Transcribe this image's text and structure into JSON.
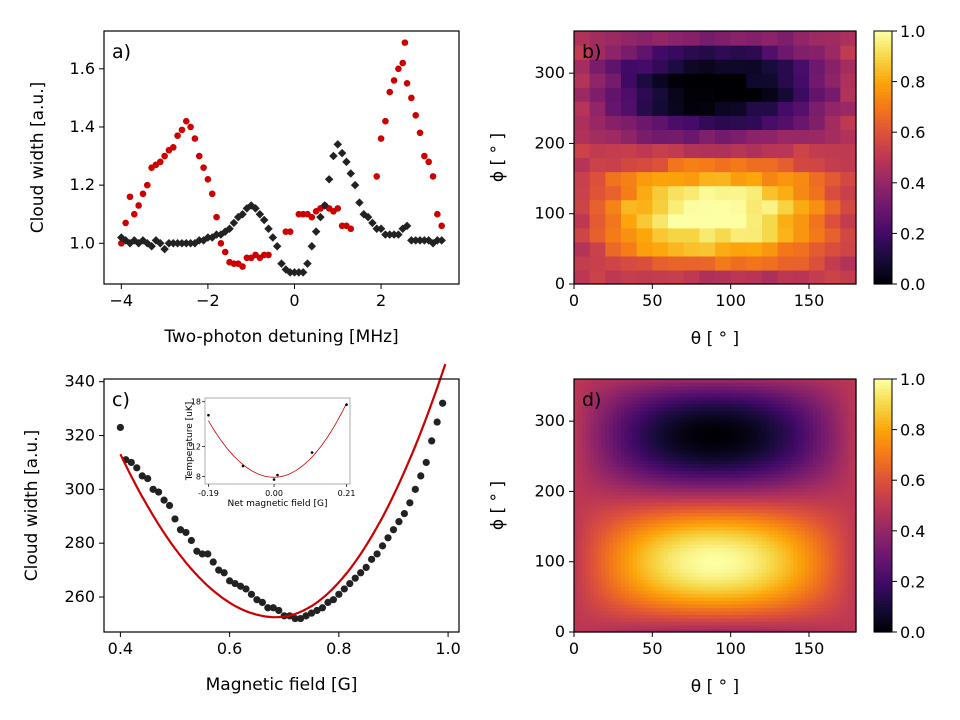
{
  "chart_data": [
    {
      "id": "a",
      "type": "scatter",
      "panel_label": "a)",
      "xlabel": "Two-photon detuning [MHz]",
      "ylabel": "Cloud width [a.u.]",
      "xlim": [
        -4.4,
        3.8
      ],
      "ylim": [
        0.86,
        1.73
      ],
      "xticks": [
        -4,
        -2,
        0,
        2
      ],
      "xtick_labels": [
        "−4",
        "−2",
        "0",
        "2"
      ],
      "yticks": [
        1.0,
        1.2,
        1.4,
        1.6
      ],
      "ytick_labels": [
        "1.0",
        "1.2",
        "1.4",
        "1.6"
      ],
      "series": [
        {
          "name": "red",
          "color": "#cc0000",
          "marker": "circle",
          "points": [
            [
              -4.0,
              1.0
            ],
            [
              -3.9,
              1.07
            ],
            [
              -3.8,
              1.16
            ],
            [
              -3.7,
              1.1
            ],
            [
              -3.6,
              1.13
            ],
            [
              -3.5,
              1.17
            ],
            [
              -3.4,
              1.2
            ],
            [
              -3.3,
              1.26
            ],
            [
              -3.2,
              1.27
            ],
            [
              -3.1,
              1.28
            ],
            [
              -3.0,
              1.3
            ],
            [
              -2.9,
              1.32
            ],
            [
              -2.8,
              1.33
            ],
            [
              -2.7,
              1.37
            ],
            [
              -2.6,
              1.39
            ],
            [
              -2.5,
              1.42
            ],
            [
              -2.4,
              1.4
            ],
            [
              -2.3,
              1.36
            ],
            [
              -2.2,
              1.3
            ],
            [
              -2.1,
              1.26
            ],
            [
              -2.0,
              1.22
            ],
            [
              -1.9,
              1.17
            ],
            [
              -1.8,
              1.09
            ],
            [
              -1.7,
              1.0
            ],
            [
              -1.6,
              0.97
            ],
            [
              -1.5,
              0.935
            ],
            [
              -1.4,
              0.93
            ],
            [
              -1.3,
              0.93
            ],
            [
              -1.2,
              0.92
            ],
            [
              -1.1,
              0.95
            ],
            [
              -1.0,
              0.95
            ],
            [
              -0.9,
              0.96
            ],
            [
              -0.8,
              0.95
            ],
            [
              -0.7,
              0.96
            ],
            [
              -0.6,
              0.96
            ],
            [
              -0.2,
              1.04
            ],
            [
              -0.1,
              1.04
            ],
            [
              0.1,
              1.1
            ],
            [
              0.2,
              1.1
            ],
            [
              0.3,
              1.1
            ],
            [
              0.4,
              1.09
            ],
            [
              0.5,
              1.11
            ],
            [
              0.6,
              1.12
            ],
            [
              0.7,
              1.13
            ],
            [
              0.8,
              1.12
            ],
            [
              0.9,
              1.11
            ],
            [
              1.0,
              1.12
            ],
            [
              1.1,
              1.06
            ],
            [
              1.2,
              1.06
            ],
            [
              1.3,
              1.05
            ],
            [
              1.9,
              1.23
            ],
            [
              2.0,
              1.36
            ],
            [
              2.1,
              1.42
            ],
            [
              2.2,
              1.52
            ],
            [
              2.3,
              1.56
            ],
            [
              2.4,
              1.6
            ],
            [
              2.5,
              1.62
            ],
            [
              2.55,
              1.69
            ],
            [
              2.6,
              1.55
            ],
            [
              2.7,
              1.5
            ],
            [
              2.8,
              1.44
            ],
            [
              2.9,
              1.38
            ],
            [
              3.0,
              1.3
            ],
            [
              3.1,
              1.28
            ],
            [
              3.2,
              1.23
            ],
            [
              3.3,
              1.1
            ],
            [
              3.4,
              1.06
            ]
          ]
        },
        {
          "name": "black",
          "color": "#222222",
          "marker": "diamond",
          "points": [
            [
              -4.0,
              1.02
            ],
            [
              -3.9,
              1.01
            ],
            [
              -3.8,
              1.0
            ],
            [
              -3.7,
              1.01
            ],
            [
              -3.6,
              1.0
            ],
            [
              -3.5,
              1.01
            ],
            [
              -3.4,
              1.0
            ],
            [
              -3.3,
              0.99
            ],
            [
              -3.2,
              1.01
            ],
            [
              -3.1,
              1.0
            ],
            [
              -3.0,
              0.98
            ],
            [
              -2.9,
              1.0
            ],
            [
              -2.8,
              1.0
            ],
            [
              -2.7,
              1.0
            ],
            [
              -2.6,
              1.0
            ],
            [
              -2.5,
              1.0
            ],
            [
              -2.4,
              1.0
            ],
            [
              -2.3,
              1.0
            ],
            [
              -2.2,
              1.01
            ],
            [
              -2.1,
              1.01
            ],
            [
              -2.0,
              1.02
            ],
            [
              -1.9,
              1.02
            ],
            [
              -1.8,
              1.03
            ],
            [
              -1.7,
              1.03
            ],
            [
              -1.6,
              1.04
            ],
            [
              -1.5,
              1.05
            ],
            [
              -1.4,
              1.07
            ],
            [
              -1.3,
              1.09
            ],
            [
              -1.2,
              1.1
            ],
            [
              -1.1,
              1.12
            ],
            [
              -1.0,
              1.13
            ],
            [
              -0.9,
              1.12
            ],
            [
              -0.8,
              1.1
            ],
            [
              -0.7,
              1.08
            ],
            [
              -0.6,
              1.05
            ],
            [
              -0.5,
              1.02
            ],
            [
              -0.4,
              0.99
            ],
            [
              -0.3,
              0.93
            ],
            [
              -0.2,
              0.91
            ],
            [
              -0.1,
              0.9
            ],
            [
              0.0,
              0.9
            ],
            [
              0.1,
              0.9
            ],
            [
              0.2,
              0.9
            ],
            [
              0.3,
              0.93
            ],
            [
              0.4,
              0.99
            ],
            [
              0.5,
              1.04
            ],
            [
              0.6,
              1.09
            ],
            [
              0.7,
              1.13
            ],
            [
              0.8,
              1.22
            ],
            [
              0.9,
              1.3
            ],
            [
              1.0,
              1.34
            ],
            [
              1.1,
              1.31
            ],
            [
              1.2,
              1.28
            ],
            [
              1.3,
              1.24
            ],
            [
              1.4,
              1.2
            ],
            [
              1.5,
              1.14
            ],
            [
              1.6,
              1.1
            ],
            [
              1.7,
              1.09
            ],
            [
              1.8,
              1.07
            ],
            [
              1.9,
              1.05
            ],
            [
              2.0,
              1.05
            ],
            [
              2.1,
              1.03
            ],
            [
              2.2,
              1.03
            ],
            [
              2.3,
              1.03
            ],
            [
              2.4,
              1.03
            ],
            [
              2.5,
              1.05
            ],
            [
              2.6,
              1.06
            ],
            [
              2.7,
              1.01
            ],
            [
              2.8,
              1.01
            ],
            [
              2.9,
              1.01
            ],
            [
              3.0,
              1.01
            ],
            [
              3.1,
              1.01
            ],
            [
              3.2,
              1.0
            ],
            [
              3.3,
              1.01
            ],
            [
              3.4,
              1.01
            ]
          ]
        }
      ]
    },
    {
      "id": "b",
      "type": "heatmap",
      "panel_label": "b)",
      "xlabel": "θ [ ° ]",
      "ylabel": "ϕ [ ° ]",
      "xlim": [
        0,
        180
      ],
      "ylim": [
        0,
        360
      ],
      "xticks": [
        0,
        50,
        100,
        150
      ],
      "yticks": [
        0,
        100,
        200,
        300
      ],
      "colormap": "inferno",
      "clim": [
        0.0,
        1.0
      ],
      "grid_size": [
        18,
        18
      ],
      "model": "0.5 + 0.5*sin(theta)*sin(phi)^? (measured, pixelated; bright band near phi≈100, dark band near phi≈280)",
      "colorbar_ticks": [
        0.0,
        0.2,
        0.4,
        0.6,
        0.8,
        1.0
      ],
      "colorbar_tick_labels": [
        "0.0",
        "0.2",
        "0.4",
        "0.6",
        "0.8",
        "1.0"
      ]
    },
    {
      "id": "c",
      "type": "scatter",
      "panel_label": "c)",
      "xlabel": "Magnetic field [G]",
      "ylabel": "Cloud width [a.u.]",
      "xlim": [
        0.37,
        1.02
      ],
      "ylim": [
        247,
        341
      ],
      "xticks": [
        0.4,
        0.6,
        0.8,
        1.0
      ],
      "xtick_labels": [
        "0.4",
        "0.6",
        "0.8",
        "1.0"
      ],
      "yticks": [
        260,
        280,
        300,
        320,
        340
      ],
      "ytick_labels": [
        "260",
        "280",
        "300",
        "320",
        "340"
      ],
      "fit": {
        "color": "#cc0000",
        "vertex_x": 0.685,
        "vertex_y": 252.5,
        "a": 932
      },
      "points": [
        [
          0.4,
          323
        ],
        [
          0.41,
          311
        ],
        [
          0.42,
          310
        ],
        [
          0.43,
          308
        ],
        [
          0.44,
          305
        ],
        [
          0.45,
          304
        ],
        [
          0.46,
          300
        ],
        [
          0.47,
          299
        ],
        [
          0.48,
          296
        ],
        [
          0.49,
          294
        ],
        [
          0.5,
          289
        ],
        [
          0.51,
          285
        ],
        [
          0.52,
          284
        ],
        [
          0.53,
          281
        ],
        [
          0.54,
          277
        ],
        [
          0.55,
          276
        ],
        [
          0.56,
          276
        ],
        [
          0.57,
          273
        ],
        [
          0.58,
          270
        ],
        [
          0.59,
          269
        ],
        [
          0.6,
          266
        ],
        [
          0.61,
          265
        ],
        [
          0.62,
          264
        ],
        [
          0.63,
          263
        ],
        [
          0.64,
          261
        ],
        [
          0.65,
          259
        ],
        [
          0.66,
          258
        ],
        [
          0.67,
          256
        ],
        [
          0.68,
          256
        ],
        [
          0.69,
          255
        ],
        [
          0.7,
          253
        ],
        [
          0.71,
          253
        ],
        [
          0.72,
          252
        ],
        [
          0.73,
          252
        ],
        [
          0.74,
          253
        ],
        [
          0.75,
          254
        ],
        [
          0.76,
          255
        ],
        [
          0.77,
          256
        ],
        [
          0.78,
          258
        ],
        [
          0.79,
          259
        ],
        [
          0.8,
          261
        ],
        [
          0.81,
          263
        ],
        [
          0.82,
          265
        ],
        [
          0.83,
          267
        ],
        [
          0.84,
          269
        ],
        [
          0.85,
          271
        ],
        [
          0.86,
          274
        ],
        [
          0.87,
          276
        ],
        [
          0.88,
          279
        ],
        [
          0.89,
          282
        ],
        [
          0.9,
          285
        ],
        [
          0.91,
          288
        ],
        [
          0.92,
          291
        ],
        [
          0.93,
          295
        ],
        [
          0.94,
          300
        ],
        [
          0.95,
          305
        ],
        [
          0.96,
          310
        ],
        [
          0.97,
          318
        ],
        [
          0.98,
          325
        ],
        [
          0.99,
          332
        ]
      ],
      "inset": {
        "xlabel": "Net magnetic field [G]",
        "ylabel": "Temperature [uK]",
        "xlim": [
          -0.2,
          0.22
        ],
        "ylim": [
          7,
          18.5
        ],
        "xticks": [
          -0.19,
          0.0,
          0.21
        ],
        "xtick_labels": [
          "-0.19",
          "0.00",
          "0.21"
        ],
        "yticks": [
          8,
          12,
          18
        ],
        "ytick_labels": [
          "8",
          "12",
          "18"
        ],
        "points": [
          [
            -0.19,
            16.2
          ],
          [
            -0.09,
            9.4
          ],
          [
            0.0,
            7.6
          ],
          [
            0.01,
            8.2
          ],
          [
            0.11,
            11.2
          ],
          [
            0.21,
            17.6
          ]
        ],
        "fit": {
          "color": "#cc0000",
          "vertex_x": 0.0,
          "vertex_y": 7.9,
          "a": 220
        }
      }
    },
    {
      "id": "d",
      "type": "heatmap",
      "panel_label": "d)",
      "xlabel": "θ [ ° ]",
      "ylabel": "ϕ [ ° ]",
      "xlim": [
        0,
        180
      ],
      "ylim": [
        0,
        360
      ],
      "xticks": [
        0,
        50,
        100,
        150
      ],
      "yticks": [
        0,
        100,
        200,
        300
      ],
      "colormap": "inferno",
      "clim": [
        0.0,
        1.0
      ],
      "model": "0.5 + 0.5*sin(theta)*sin(phi) (smooth simulation)",
      "colorbar_ticks": [
        0.0,
        0.2,
        0.4,
        0.6,
        0.8,
        1.0
      ],
      "colorbar_tick_labels": [
        "0.0",
        "0.2",
        "0.4",
        "0.6",
        "0.8",
        "1.0"
      ]
    }
  ]
}
